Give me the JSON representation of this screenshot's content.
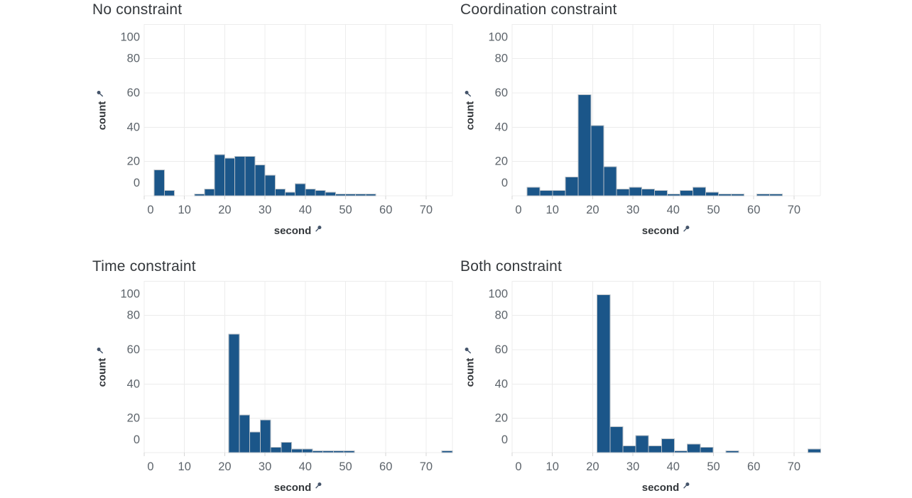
{
  "page": {
    "background": "#ffffff"
  },
  "style": {
    "bar_fill": "#1b5689",
    "bar_stroke": "#b7bfc6",
    "grid_color": "#ececec",
    "tick_color": "#d6d6d6",
    "tick_label_color": "#5d646b",
    "title_color": "#34383c",
    "axis_title_color": "#33373b",
    "pin_icon_color": "#44546a"
  },
  "icons": {
    "axis_field_icon": "pin-icon"
  },
  "chart_data": [
    {
      "type": "bar",
      "subtype": "histogram",
      "title": "No constraint",
      "xlabel": "second",
      "ylabel": "count",
      "xlim": [
        0,
        76.6
      ],
      "ylim": [
        0,
        100
      ],
      "x_ticks": [
        0,
        10,
        20,
        30,
        40,
        50,
        60,
        70
      ],
      "y_ticks": [
        0,
        20,
        40,
        60,
        80,
        100
      ],
      "grid": true,
      "bin_width_s": 2.5,
      "bars": [
        {
          "start": 2.5,
          "count": 15
        },
        {
          "start": 5.0,
          "count": 3
        },
        {
          "start": 12.5,
          "count": 1
        },
        {
          "start": 15.0,
          "count": 4
        },
        {
          "start": 17.5,
          "count": 24
        },
        {
          "start": 20.0,
          "count": 22
        },
        {
          "start": 22.5,
          "count": 23
        },
        {
          "start": 25.0,
          "count": 23
        },
        {
          "start": 27.5,
          "count": 18
        },
        {
          "start": 30.0,
          "count": 12
        },
        {
          "start": 32.5,
          "count": 4
        },
        {
          "start": 35.0,
          "count": 2
        },
        {
          "start": 37.5,
          "count": 7
        },
        {
          "start": 40.0,
          "count": 4
        },
        {
          "start": 42.5,
          "count": 3
        },
        {
          "start": 45.0,
          "count": 2
        },
        {
          "start": 47.5,
          "count": 1
        },
        {
          "start": 50.0,
          "count": 1
        },
        {
          "start": 52.5,
          "count": 1
        },
        {
          "start": 55.0,
          "count": 1
        }
      ]
    },
    {
      "type": "bar",
      "subtype": "histogram",
      "title": "Coordination constraint",
      "xlabel": "second",
      "ylabel": "count",
      "xlim": [
        0,
        76.6
      ],
      "ylim": [
        0,
        100
      ],
      "x_ticks": [
        0,
        10,
        20,
        30,
        40,
        50,
        60,
        70
      ],
      "y_ticks": [
        0,
        20,
        40,
        60,
        80,
        100
      ],
      "grid": true,
      "bin_width_s": 3.17,
      "bars": [
        {
          "start": 3.7,
          "count": 5
        },
        {
          "start": 6.87,
          "count": 3
        },
        {
          "start": 10.04,
          "count": 3
        },
        {
          "start": 13.21,
          "count": 11
        },
        {
          "start": 16.38,
          "count": 59
        },
        {
          "start": 19.55,
          "count": 41
        },
        {
          "start": 22.72,
          "count": 17
        },
        {
          "start": 25.89,
          "count": 4
        },
        {
          "start": 29.06,
          "count": 5
        },
        {
          "start": 32.23,
          "count": 4
        },
        {
          "start": 35.4,
          "count": 3
        },
        {
          "start": 38.57,
          "count": 1
        },
        {
          "start": 41.74,
          "count": 3
        },
        {
          "start": 44.91,
          "count": 5
        },
        {
          "start": 48.08,
          "count": 2
        },
        {
          "start": 51.25,
          "count": 1
        },
        {
          "start": 54.42,
          "count": 1
        },
        {
          "start": 60.76,
          "count": 1
        },
        {
          "start": 63.93,
          "count": 1
        }
      ]
    },
    {
      "type": "bar",
      "subtype": "histogram",
      "title": "Time constraint",
      "xlabel": "second",
      "ylabel": "count",
      "xlim": [
        0,
        76.6
      ],
      "ylim": [
        0,
        100
      ],
      "x_ticks": [
        0,
        10,
        20,
        30,
        40,
        50,
        60,
        70
      ],
      "y_ticks": [
        0,
        20,
        40,
        60,
        80,
        100
      ],
      "grid": true,
      "bin_width_s": 2.6,
      "bars": [
        {
          "start": 21.0,
          "count": 69
        },
        {
          "start": 23.6,
          "count": 22
        },
        {
          "start": 26.2,
          "count": 12
        },
        {
          "start": 28.8,
          "count": 19
        },
        {
          "start": 31.4,
          "count": 3
        },
        {
          "start": 34.0,
          "count": 6
        },
        {
          "start": 36.6,
          "count": 2
        },
        {
          "start": 39.2,
          "count": 2
        },
        {
          "start": 41.8,
          "count": 1
        },
        {
          "start": 44.4,
          "count": 1
        },
        {
          "start": 47.0,
          "count": 1
        },
        {
          "start": 49.6,
          "count": 1
        },
        {
          "start": 73.9,
          "count": 1
        }
      ]
    },
    {
      "type": "bar",
      "subtype": "histogram",
      "title": "Both constraint",
      "xlabel": "second",
      "ylabel": "count",
      "xlim": [
        0,
        76.6
      ],
      "ylim": [
        0,
        100
      ],
      "x_ticks": [
        0,
        10,
        20,
        30,
        40,
        50,
        60,
        70
      ],
      "y_ticks": [
        0,
        20,
        40,
        60,
        80,
        100
      ],
      "grid": true,
      "bin_width_s": 3.2,
      "bars": [
        {
          "start": 21.1,
          "count": 92
        },
        {
          "start": 24.3,
          "count": 15
        },
        {
          "start": 27.5,
          "count": 4
        },
        {
          "start": 30.7,
          "count": 10
        },
        {
          "start": 33.9,
          "count": 4
        },
        {
          "start": 37.1,
          "count": 8
        },
        {
          "start": 40.3,
          "count": 1
        },
        {
          "start": 43.5,
          "count": 5
        },
        {
          "start": 46.7,
          "count": 3
        },
        {
          "start": 53.1,
          "count": 1
        },
        {
          "start": 73.5,
          "count": 2
        }
      ]
    }
  ]
}
